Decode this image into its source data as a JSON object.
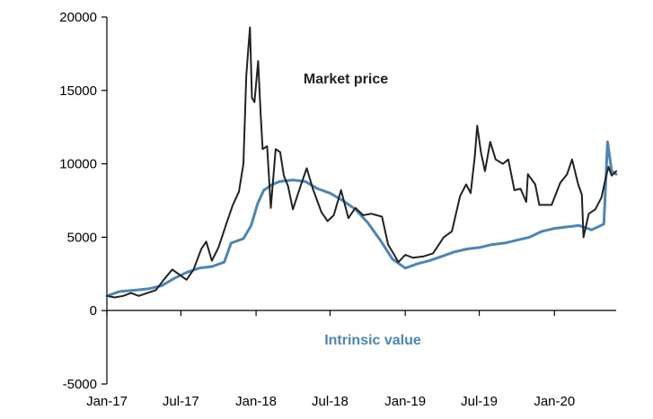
{
  "chart_data": {
    "type": "line",
    "title": "",
    "xlabel": "",
    "ylabel": "",
    "ylim": [
      -5000,
      20000
    ],
    "xlim": [
      "2017-01-01",
      "2020-05-31"
    ],
    "grid": false,
    "y_ticks": [
      {
        "value": -5000,
        "label": "-5000"
      },
      {
        "value": 0,
        "label": "0"
      },
      {
        "value": 5000,
        "label": "5000"
      },
      {
        "value": 10000,
        "label": "10000"
      },
      {
        "value": 15000,
        "label": "15000"
      },
      {
        "value": 20000,
        "label": "20000"
      }
    ],
    "x_ticks": [
      {
        "date": "2017-01-01",
        "label": "Jan-17"
      },
      {
        "date": "2017-07-01",
        "label": "Jul-17"
      },
      {
        "date": "2018-01-01",
        "label": "Jan-18"
      },
      {
        "date": "2018-07-01",
        "label": "Jul-18"
      },
      {
        "date": "2019-01-01",
        "label": "Jan-19"
      },
      {
        "date": "2019-07-01",
        "label": "Jul-19"
      },
      {
        "date": "2020-01-01",
        "label": "Jan-20"
      }
    ],
    "series": [
      {
        "name": "Market price",
        "color": "#222222",
        "points": [
          [
            "2017-01-01",
            1000
          ],
          [
            "2017-01-20",
            900
          ],
          [
            "2017-02-10",
            1000
          ],
          [
            "2017-03-01",
            1200
          ],
          [
            "2017-03-20",
            1000
          ],
          [
            "2017-04-10",
            1200
          ],
          [
            "2017-05-01",
            1400
          ],
          [
            "2017-05-20",
            2100
          ],
          [
            "2017-06-10",
            2800
          ],
          [
            "2017-06-25",
            2500
          ],
          [
            "2017-07-15",
            2100
          ],
          [
            "2017-08-01",
            2800
          ],
          [
            "2017-08-20",
            4200
          ],
          [
            "2017-09-01",
            4700
          ],
          [
            "2017-09-15",
            3400
          ],
          [
            "2017-10-01",
            4300
          ],
          [
            "2017-10-20",
            5900
          ],
          [
            "2017-11-05",
            7200
          ],
          [
            "2017-11-20",
            8100
          ],
          [
            "2017-12-01",
            10000
          ],
          [
            "2017-12-08",
            16000
          ],
          [
            "2017-12-12",
            17500
          ],
          [
            "2017-12-17",
            19300
          ],
          [
            "2017-12-22",
            14500
          ],
          [
            "2017-12-28",
            14200
          ],
          [
            "2018-01-06",
            17000
          ],
          [
            "2018-01-12",
            13500
          ],
          [
            "2018-01-17",
            11000
          ],
          [
            "2018-01-28",
            11200
          ],
          [
            "2018-02-06",
            7000
          ],
          [
            "2018-02-18",
            11000
          ],
          [
            "2018-03-01",
            10800
          ],
          [
            "2018-03-10",
            9200
          ],
          [
            "2018-03-20",
            8500
          ],
          [
            "2018-04-01",
            6900
          ],
          [
            "2018-04-20",
            8500
          ],
          [
            "2018-05-05",
            9700
          ],
          [
            "2018-05-20",
            8300
          ],
          [
            "2018-06-10",
            6700
          ],
          [
            "2018-06-25",
            6100
          ],
          [
            "2018-07-10",
            6500
          ],
          [
            "2018-07-28",
            8200
          ],
          [
            "2018-08-15",
            6300
          ],
          [
            "2018-09-01",
            7000
          ],
          [
            "2018-09-20",
            6500
          ],
          [
            "2018-10-10",
            6600
          ],
          [
            "2018-11-05",
            6400
          ],
          [
            "2018-11-20",
            4500
          ],
          [
            "2018-12-05",
            3800
          ],
          [
            "2018-12-15",
            3300
          ],
          [
            "2019-01-01",
            3800
          ],
          [
            "2019-01-20",
            3600
          ],
          [
            "2019-02-15",
            3700
          ],
          [
            "2019-03-10",
            3900
          ],
          [
            "2019-04-05",
            5000
          ],
          [
            "2019-04-25",
            5400
          ],
          [
            "2019-05-15",
            7800
          ],
          [
            "2019-05-30",
            8600
          ],
          [
            "2019-06-10",
            8000
          ],
          [
            "2019-06-20",
            10500
          ],
          [
            "2019-06-26",
            12600
          ],
          [
            "2019-07-05",
            10800
          ],
          [
            "2019-07-15",
            9500
          ],
          [
            "2019-07-28",
            11500
          ],
          [
            "2019-08-10",
            10300
          ],
          [
            "2019-08-28",
            10000
          ],
          [
            "2019-09-10",
            10300
          ],
          [
            "2019-09-25",
            8200
          ],
          [
            "2019-10-10",
            8300
          ],
          [
            "2019-10-24",
            7400
          ],
          [
            "2019-10-28",
            9300
          ],
          [
            "2019-11-15",
            8600
          ],
          [
            "2019-11-25",
            7200
          ],
          [
            "2019-12-10",
            7200
          ],
          [
            "2019-12-25",
            7200
          ],
          [
            "2020-01-15",
            8700
          ],
          [
            "2020-02-01",
            9300
          ],
          [
            "2020-02-13",
            10300
          ],
          [
            "2020-02-28",
            8600
          ],
          [
            "2020-03-08",
            7900
          ],
          [
            "2020-03-12",
            5000
          ],
          [
            "2020-03-25",
            6600
          ],
          [
            "2020-04-10",
            6900
          ],
          [
            "2020-04-25",
            7700
          ],
          [
            "2020-05-05",
            9000
          ],
          [
            "2020-05-12",
            9800
          ],
          [
            "2020-05-20",
            9200
          ],
          [
            "2020-05-31",
            9500
          ]
        ]
      },
      {
        "name": "Intrinsic value",
        "color": "#4a86b8",
        "points": [
          [
            "2017-01-01",
            1000
          ],
          [
            "2017-02-01",
            1300
          ],
          [
            "2017-03-15",
            1400
          ],
          [
            "2017-04-15",
            1500
          ],
          [
            "2017-05-15",
            1700
          ],
          [
            "2017-06-15",
            2200
          ],
          [
            "2017-07-15",
            2600
          ],
          [
            "2017-08-15",
            2900
          ],
          [
            "2017-09-15",
            3000
          ],
          [
            "2017-10-15",
            3300
          ],
          [
            "2017-11-01",
            4600
          ],
          [
            "2017-12-01",
            4900
          ],
          [
            "2017-12-20",
            5800
          ],
          [
            "2018-01-05",
            7300
          ],
          [
            "2018-01-20",
            8200
          ],
          [
            "2018-02-10",
            8600
          ],
          [
            "2018-03-01",
            8800
          ],
          [
            "2018-04-01",
            8900
          ],
          [
            "2018-05-01",
            8800
          ],
          [
            "2018-06-01",
            8300
          ],
          [
            "2018-07-01",
            8000
          ],
          [
            "2018-08-01",
            7500
          ],
          [
            "2018-09-01",
            6900
          ],
          [
            "2018-10-01",
            6000
          ],
          [
            "2018-11-01",
            4800
          ],
          [
            "2018-12-01",
            3500
          ],
          [
            "2019-01-01",
            2900
          ],
          [
            "2019-02-01",
            3200
          ],
          [
            "2019-03-01",
            3400
          ],
          [
            "2019-04-01",
            3700
          ],
          [
            "2019-05-01",
            4000
          ],
          [
            "2019-06-01",
            4200
          ],
          [
            "2019-07-01",
            4300
          ],
          [
            "2019-08-01",
            4500
          ],
          [
            "2019-09-01",
            4600
          ],
          [
            "2019-10-01",
            4800
          ],
          [
            "2019-11-01",
            5000
          ],
          [
            "2019-12-01",
            5400
          ],
          [
            "2020-01-01",
            5600
          ],
          [
            "2020-02-01",
            5700
          ],
          [
            "2020-03-01",
            5800
          ],
          [
            "2020-04-01",
            5500
          ],
          [
            "2020-05-01",
            5900
          ],
          [
            "2020-05-10",
            11500
          ],
          [
            "2020-05-20",
            9500
          ],
          [
            "2020-05-31",
            9300
          ]
        ]
      }
    ]
  }
}
